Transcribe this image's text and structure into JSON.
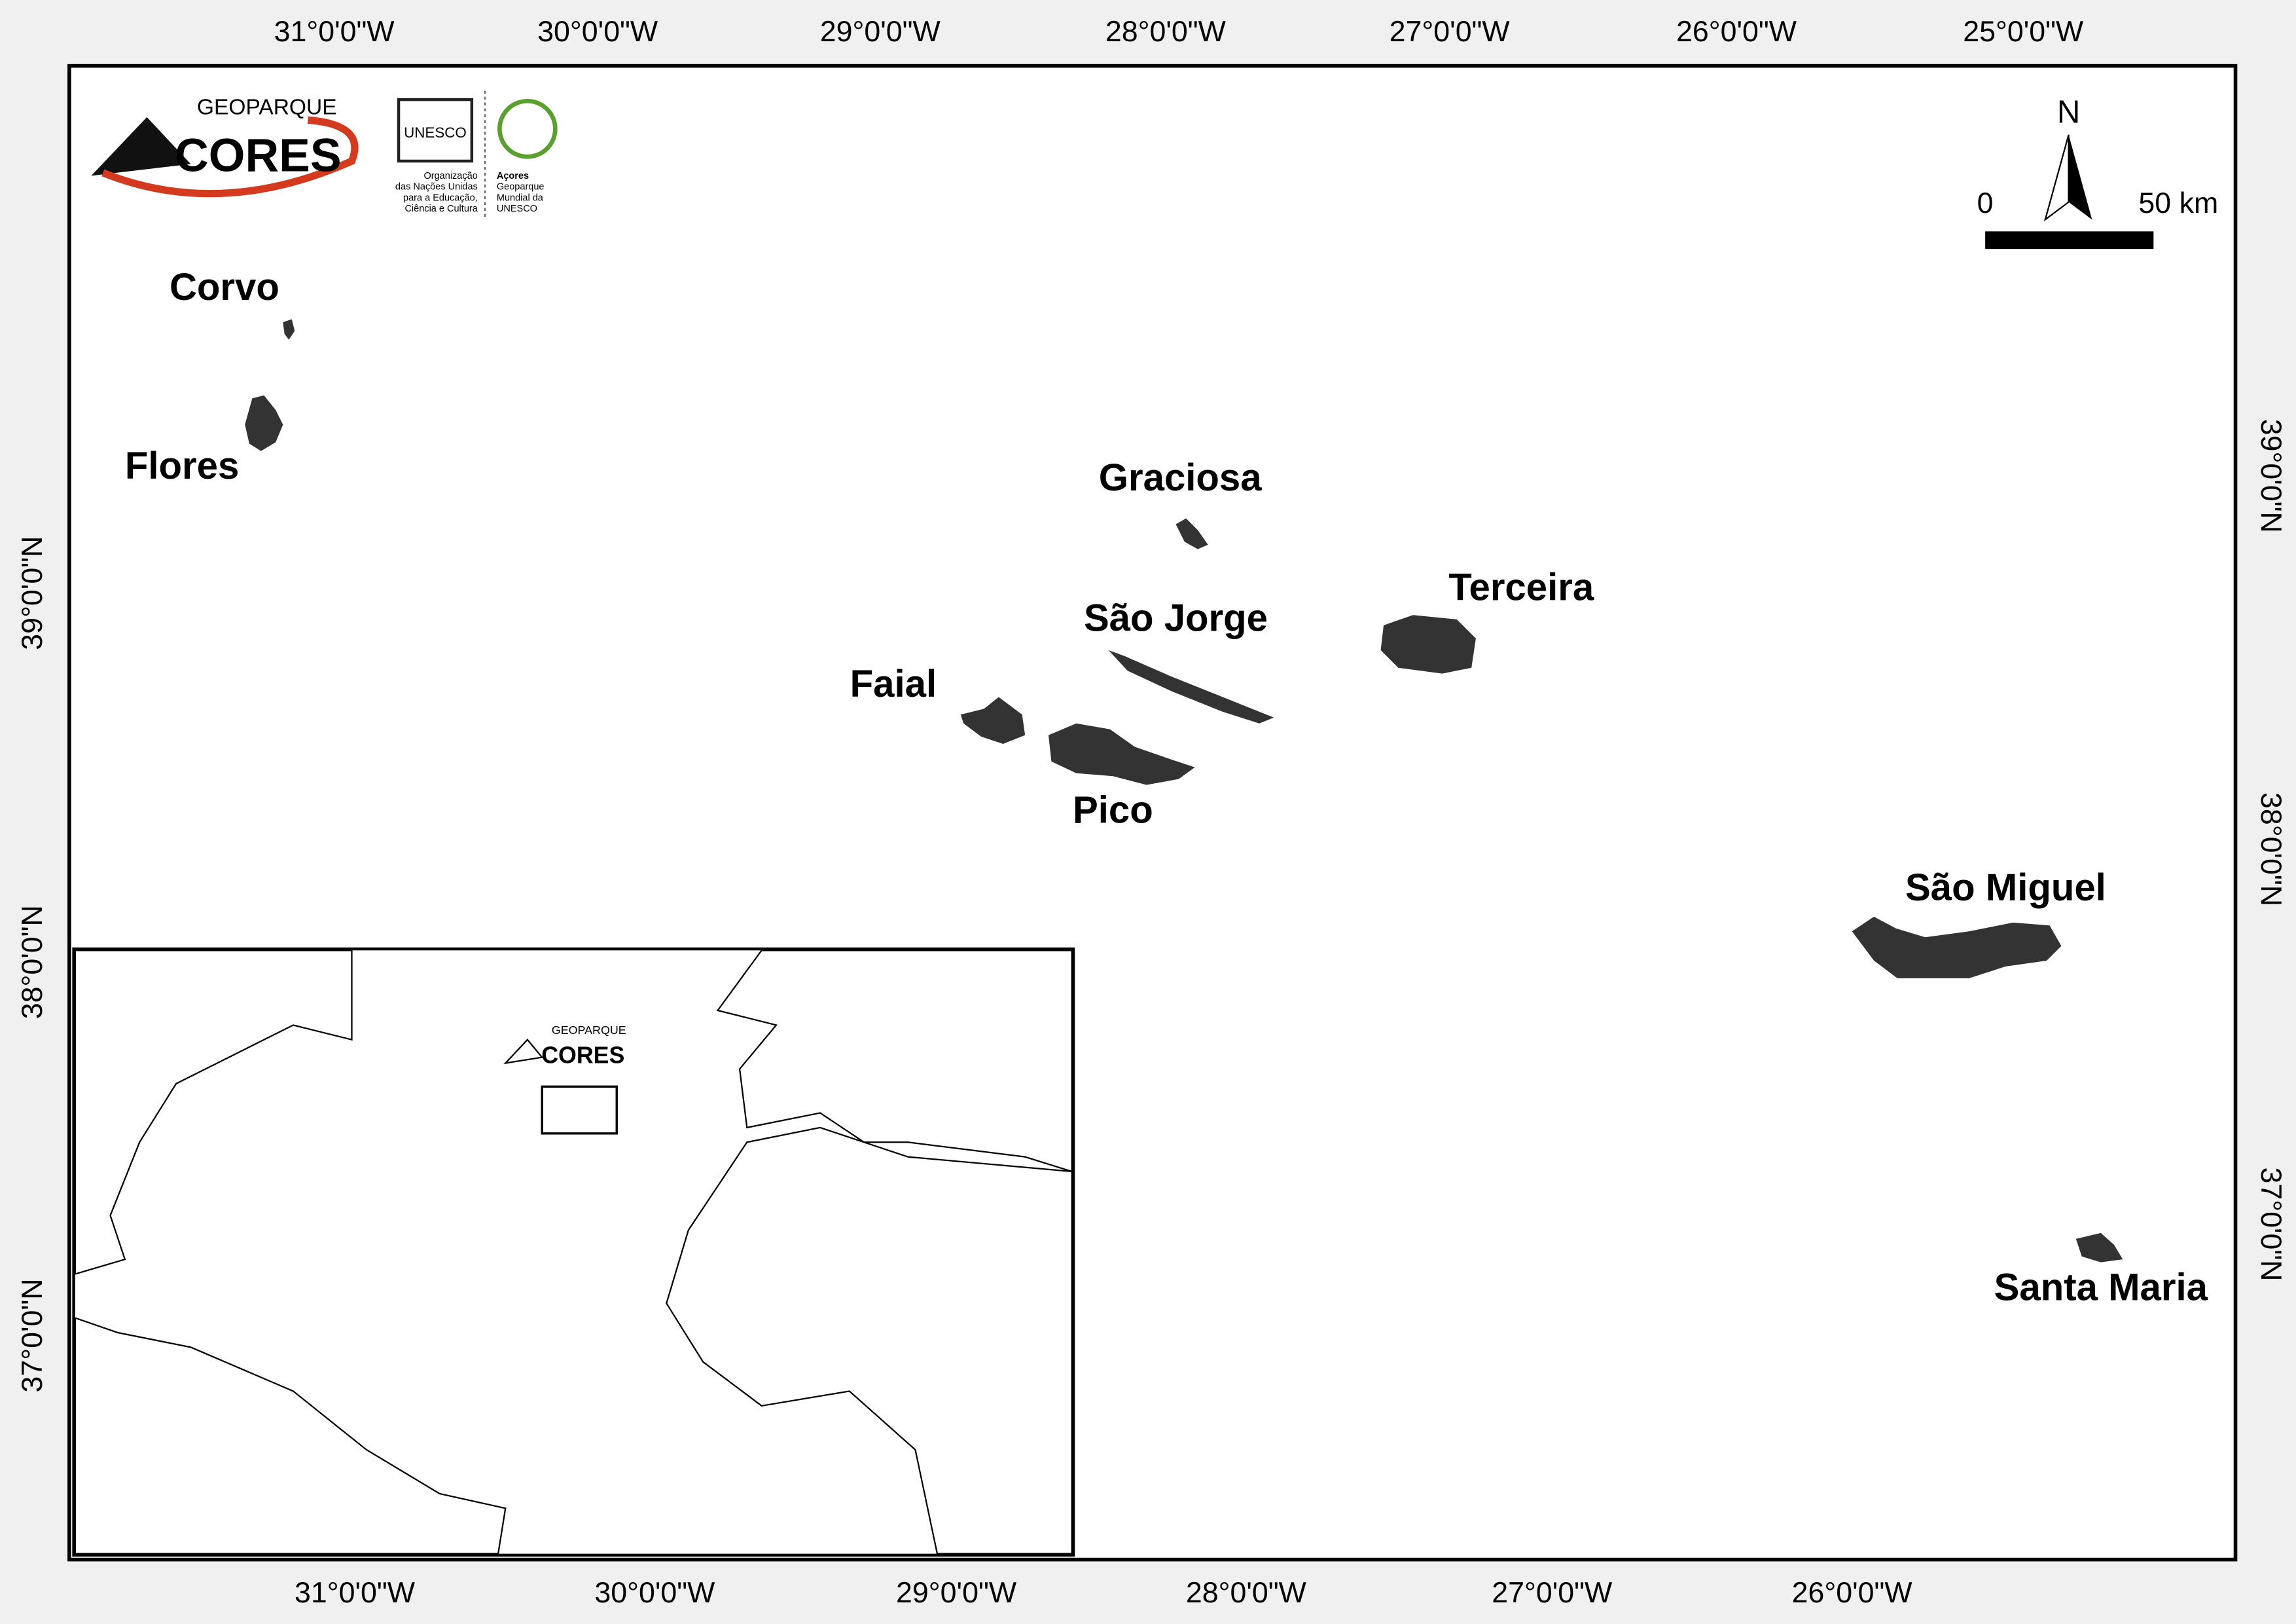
{
  "logo": {
    "brand_top": "GEOPARQUE",
    "brand_main": "CORES",
    "unesco": "UNESCO",
    "unesco_org": [
      "Organização",
      "das Nações Unidas",
      "para a Educação,",
      "Ciência e Cultura"
    ],
    "geopark": [
      "Açores",
      "Geoparque",
      "Mundial da",
      "UNESCO"
    ]
  },
  "graticule": {
    "top": [
      "31°0'0\"W",
      "30°0'0\"W",
      "29°0'0\"W",
      "28°0'0\"W",
      "27°0'0\"W",
      "26°0'0\"W",
      "25°0'0\"W"
    ],
    "bottom": [
      "31°0'0\"W",
      "30°0'0\"W",
      "29°0'0\"W",
      "28°0'0\"W",
      "27°0'0\"W",
      "26°0'0\"W"
    ],
    "left": [
      "39°0'0\"N",
      "38°0'0\"N",
      "37°0'0\"N"
    ],
    "right": [
      "39°0'0\"N",
      "38°0'0\"N",
      "37°0'0\"N"
    ]
  },
  "islands": [
    "Corvo",
    "Flores",
    "Graciosa",
    "São Jorge",
    "Terceira",
    "Faial",
    "Pico",
    "São Miguel",
    "Santa Maria"
  ],
  "scale_bar": {
    "start": "0",
    "end": "50 km"
  },
  "north_arrow": "N"
}
